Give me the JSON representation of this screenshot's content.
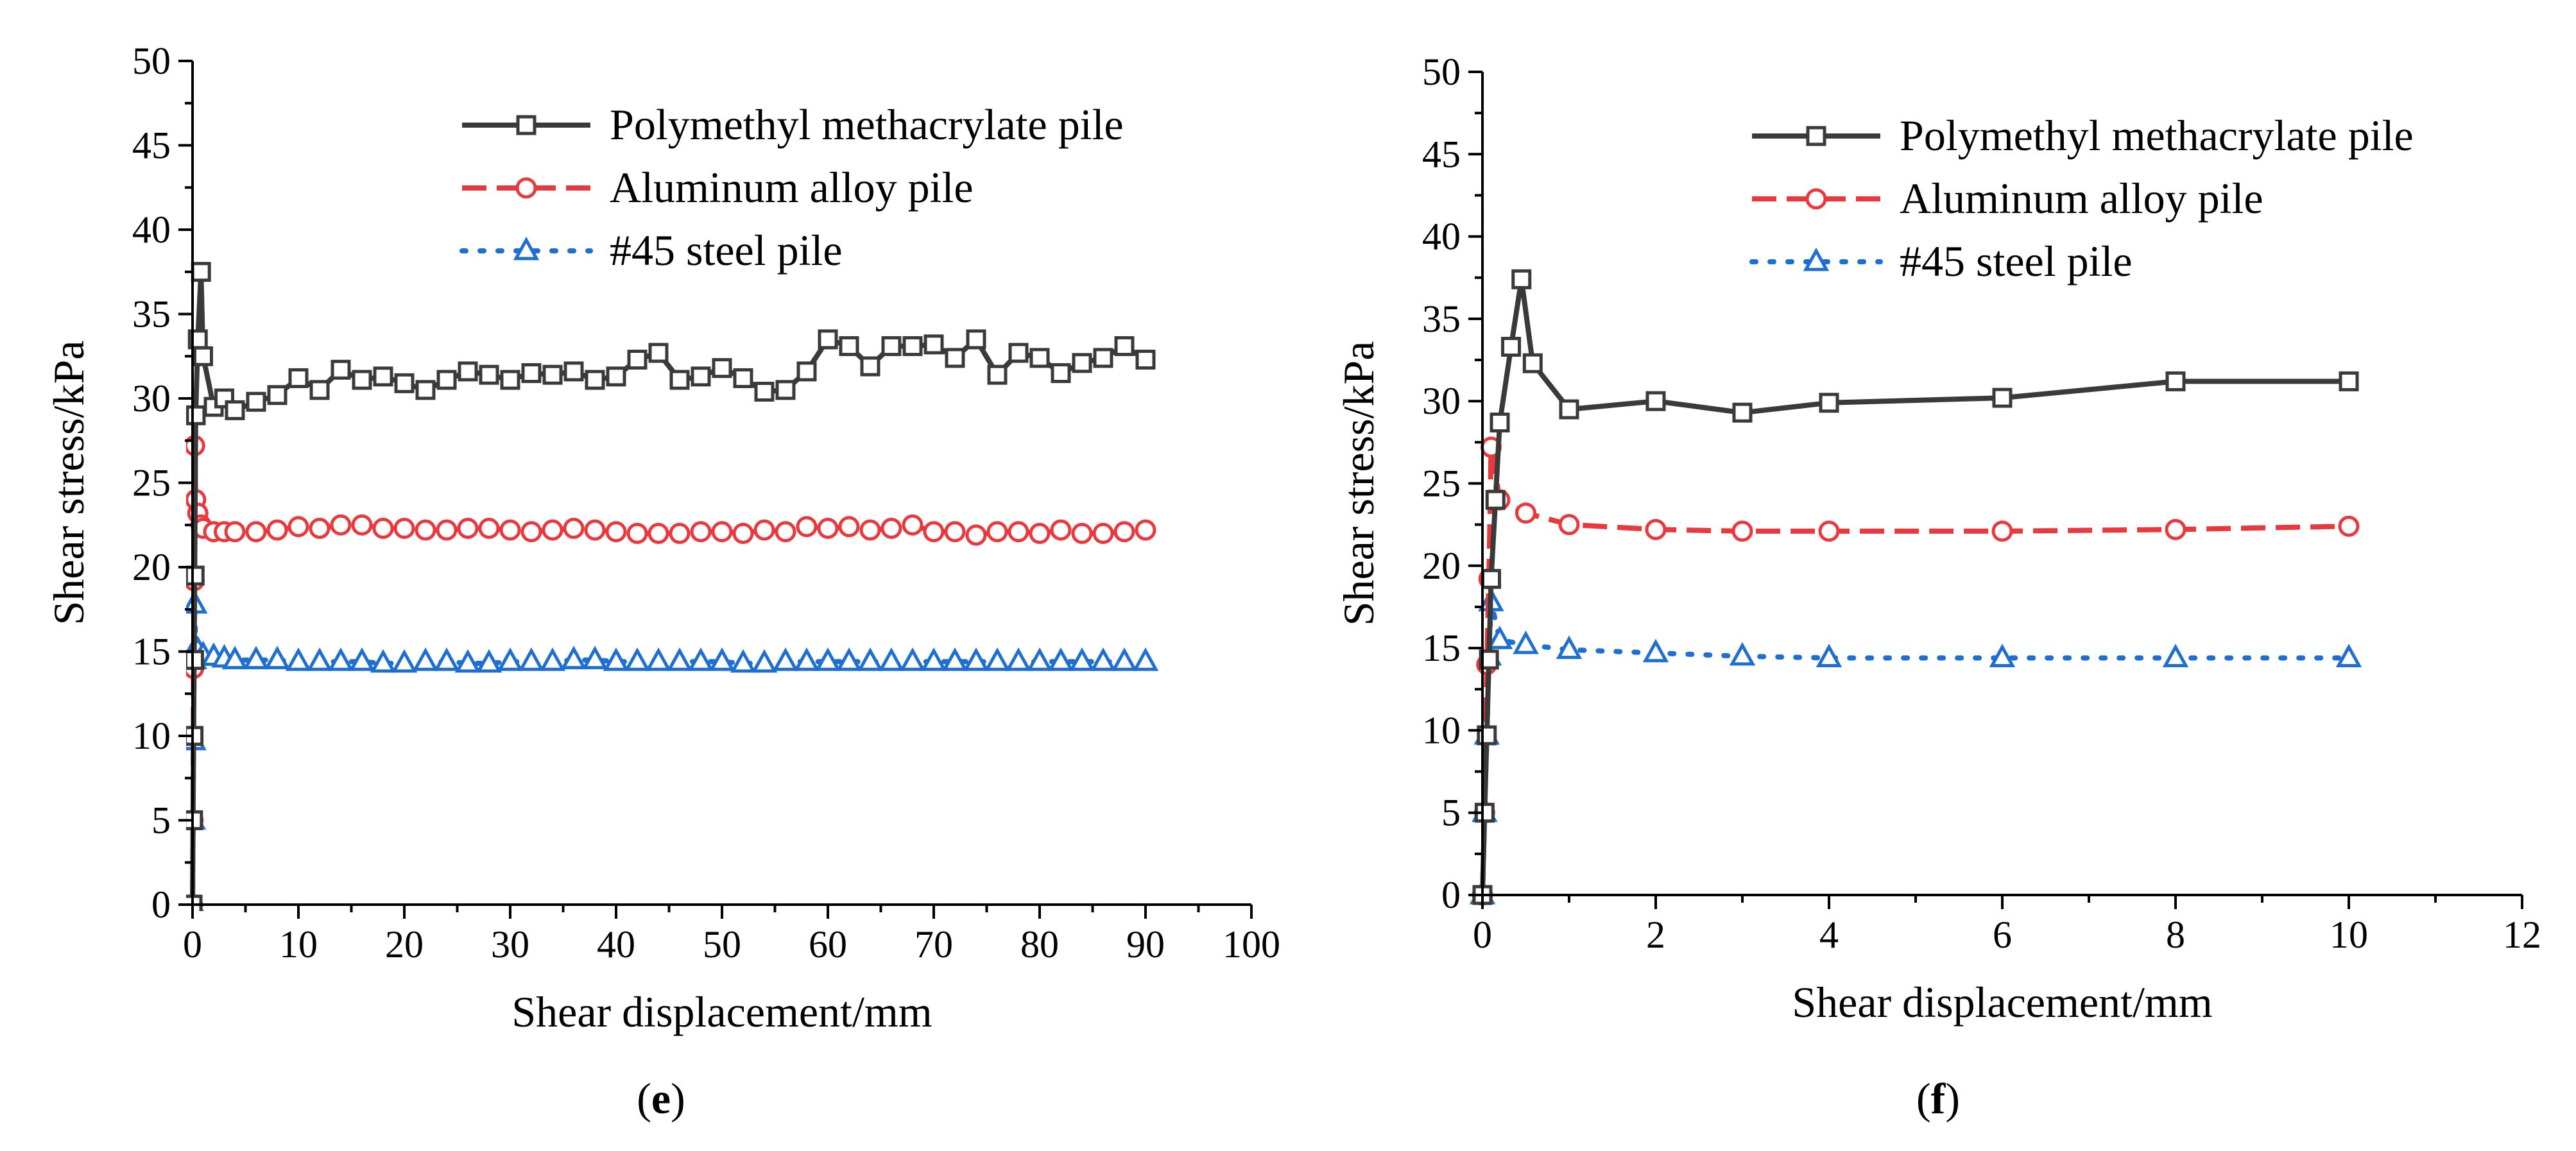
{
  "figure": {
    "panel_labels": [
      "e",
      "f"
    ]
  },
  "chart_data": [
    {
      "type": "line",
      "panel": "e",
      "xlabel": "Shear displacement/mm",
      "ylabel": "Shear stress/kPa",
      "xlim": [
        0,
        100
      ],
      "ylim": [
        0,
        50
      ],
      "xticks": [
        0,
        10,
        20,
        30,
        40,
        50,
        60,
        70,
        80,
        90,
        100
      ],
      "yticks": [
        0,
        5,
        10,
        15,
        20,
        25,
        30,
        35,
        40,
        45,
        50
      ],
      "legend": "top-right",
      "series": [
        {
          "name": "Polymethyl methacrylate pile",
          "color": "#3a3a3a",
          "style": "solid",
          "marker": "square",
          "x": [
            0,
            0.05,
            0.1,
            0.15,
            0.2,
            0.3,
            0.5,
            0.8,
            1,
            2,
            3,
            4,
            6,
            8,
            10,
            12,
            14,
            16,
            18,
            20,
            22,
            24,
            26,
            28,
            30,
            32,
            34,
            36,
            38,
            40,
            42,
            44,
            46,
            48,
            50,
            52,
            54,
            56,
            58,
            60,
            62,
            64,
            66,
            68,
            70,
            72,
            74,
            76,
            78,
            80,
            82,
            84,
            86,
            88,
            90
          ],
          "y": [
            0,
            5,
            10,
            14.5,
            19.5,
            29,
            33.5,
            37.5,
            32.5,
            29.5,
            30,
            29.3,
            29.8,
            30.2,
            31.2,
            30.5,
            31.7,
            31.1,
            31.3,
            30.9,
            30.5,
            31.1,
            31.6,
            31.4,
            31.1,
            31.5,
            31.4,
            31.6,
            31.1,
            31.3,
            32.3,
            32.7,
            31.1,
            31.3,
            31.8,
            31.2,
            30.4,
            30.5,
            31.6,
            33.5,
            33.1,
            31.9,
            33.1,
            33.1,
            33.2,
            32.4,
            33.5,
            31.4,
            32.7,
            32.4,
            31.5,
            32.1,
            32.4,
            33.1,
            32.3
          ]
        },
        {
          "name": "Aluminum alloy pile",
          "color": "#e8393f",
          "style": "dash",
          "marker": "circle",
          "x": [
            0,
            0.05,
            0.1,
            0.15,
            0.2,
            0.3,
            0.5,
            0.8,
            1,
            2,
            3,
            4,
            6,
            8,
            10,
            12,
            14,
            16,
            18,
            20,
            22,
            24,
            26,
            28,
            30,
            32,
            34,
            36,
            38,
            40,
            42,
            44,
            46,
            48,
            50,
            52,
            54,
            56,
            58,
            60,
            62,
            64,
            66,
            68,
            70,
            72,
            74,
            76,
            78,
            80,
            82,
            84,
            86,
            88,
            90
          ],
          "y": [
            0,
            5,
            14,
            19.2,
            27.2,
            24,
            23.2,
            22.5,
            22.3,
            22.1,
            22.1,
            22.1,
            22.1,
            22.2,
            22.4,
            22.3,
            22.5,
            22.5,
            22.3,
            22.3,
            22.2,
            22.2,
            22.3,
            22.3,
            22.2,
            22.1,
            22.2,
            22.3,
            22.2,
            22.1,
            22,
            22,
            22,
            22.1,
            22.1,
            22,
            22.2,
            22.1,
            22.4,
            22.3,
            22.4,
            22.2,
            22.3,
            22.5,
            22.1,
            22.1,
            21.9,
            22.1,
            22.1,
            22,
            22.2,
            22,
            22,
            22.1,
            22.2
          ]
        },
        {
          "name": "#45 steel pile",
          "color": "#1f6fd1",
          "style": "dot",
          "marker": "triangle",
          "x": [
            0,
            0.05,
            0.1,
            0.15,
            0.2,
            0.3,
            0.5,
            1,
            2,
            3,
            4,
            6,
            8,
            10,
            12,
            14,
            16,
            18,
            20,
            22,
            24,
            26,
            28,
            30,
            32,
            34,
            36,
            38,
            40,
            42,
            44,
            46,
            48,
            50,
            52,
            54,
            56,
            58,
            60,
            62,
            64,
            66,
            68,
            70,
            72,
            74,
            76,
            78,
            80,
            82,
            84,
            86,
            88,
            90
          ],
          "y": [
            0,
            5,
            9.7,
            14.5,
            17.8,
            15.2,
            15.1,
            14.8,
            14.7,
            14.6,
            14.5,
            14.5,
            14.5,
            14.4,
            14.4,
            14.4,
            14.4,
            14.3,
            14.3,
            14.4,
            14.4,
            14.3,
            14.3,
            14.4,
            14.4,
            14.4,
            14.5,
            14.5,
            14.4,
            14.4,
            14.4,
            14.4,
            14.4,
            14.4,
            14.3,
            14.3,
            14.4,
            14.4,
            14.4,
            14.4,
            14.4,
            14.4,
            14.4,
            14.4,
            14.4,
            14.4,
            14.4,
            14.4,
            14.4,
            14.4,
            14.4,
            14.4,
            14.4,
            14.4
          ]
        }
      ]
    },
    {
      "type": "line",
      "panel": "f",
      "xlabel": "Shear displacement/mm",
      "ylabel": "Shear stress/kPa",
      "xlim": [
        0,
        12
      ],
      "ylim": [
        0,
        50
      ],
      "xticks": [
        0,
        2,
        4,
        6,
        8,
        10,
        12
      ],
      "yticks": [
        0,
        5,
        10,
        15,
        20,
        25,
        30,
        35,
        40,
        45,
        50
      ],
      "legend": "top-right",
      "series": [
        {
          "name": "Polymethyl methacrylate pile",
          "color": "#3a3a3a",
          "style": "solid",
          "marker": "square",
          "x": [
            0,
            0.025,
            0.05,
            0.075,
            0.1,
            0.15,
            0.2,
            0.33,
            0.45,
            0.58,
            1,
            2,
            3,
            4,
            6,
            8,
            10
          ],
          "y": [
            0,
            5,
            9.7,
            14.3,
            19.2,
            24,
            28.7,
            33.3,
            37.4,
            32.3,
            29.5,
            30,
            29.3,
            29.9,
            30.2,
            31.2,
            31.2
          ]
        },
        {
          "name": "Aluminum alloy pile",
          "color": "#e8393f",
          "style": "dash",
          "marker": "circle",
          "x": [
            0,
            0.025,
            0.05,
            0.075,
            0.1,
            0.2,
            0.5,
            1,
            2,
            3,
            4,
            6,
            8,
            10
          ],
          "y": [
            0,
            5,
            14,
            19.2,
            27.2,
            24,
            23.2,
            22.5,
            22.2,
            22.1,
            22.1,
            22.1,
            22.2,
            22.4
          ]
        },
        {
          "name": "#45 steel pile",
          "color": "#1f6fd1",
          "style": "dot",
          "marker": "triangle",
          "x": [
            0,
            0.025,
            0.05,
            0.075,
            0.1,
            0.2,
            0.5,
            1,
            2,
            3,
            4,
            6,
            8,
            10
          ],
          "y": [
            0,
            5,
            9.7,
            14.5,
            17.8,
            15.5,
            15.2,
            14.9,
            14.7,
            14.5,
            14.4,
            14.4,
            14.4,
            14.4
          ]
        }
      ]
    }
  ]
}
